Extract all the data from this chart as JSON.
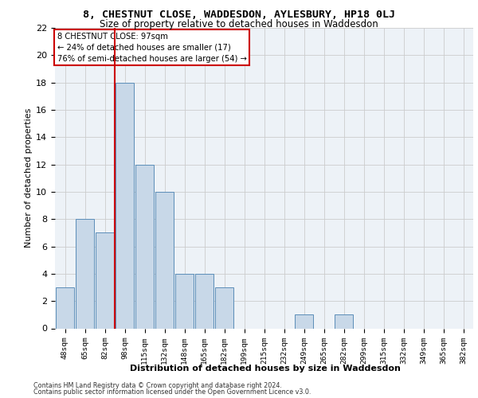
{
  "title": "8, CHESTNUT CLOSE, WADDESDON, AYLESBURY, HP18 0LJ",
  "subtitle": "Size of property relative to detached houses in Waddesdon",
  "xlabel": "Distribution of detached houses by size in Waddesdon",
  "ylabel": "Number of detached properties",
  "bar_labels": [
    "48sqm",
    "65sqm",
    "82sqm",
    "98sqm",
    "115sqm",
    "132sqm",
    "148sqm",
    "165sqm",
    "182sqm",
    "199sqm",
    "215sqm",
    "232sqm",
    "249sqm",
    "265sqm",
    "282sqm",
    "299sqm",
    "315sqm",
    "332sqm",
    "349sqm",
    "365sqm",
    "382sqm"
  ],
  "bar_values": [
    3,
    8,
    7,
    18,
    12,
    10,
    4,
    4,
    3,
    0,
    0,
    0,
    1,
    0,
    1,
    0,
    0,
    0,
    0,
    0,
    0
  ],
  "bar_color": "#c8d8e8",
  "bar_edge_color": "#5b8db8",
  "vline_x_index": 3,
  "annotation_line1": "8 CHESTNUT CLOSE: 97sqm",
  "annotation_line2": "← 24% of detached houses are smaller (17)",
  "annotation_line3": "76% of semi-detached houses are larger (54) →",
  "vline_color": "#cc0000",
  "ylim": [
    0,
    22
  ],
  "yticks": [
    0,
    2,
    4,
    6,
    8,
    10,
    12,
    14,
    16,
    18,
    20,
    22
  ],
  "grid_color": "#cccccc",
  "background_color": "#edf2f7",
  "footer_line1": "Contains HM Land Registry data © Crown copyright and database right 2024.",
  "footer_line2": "Contains public sector information licensed under the Open Government Licence v3.0."
}
